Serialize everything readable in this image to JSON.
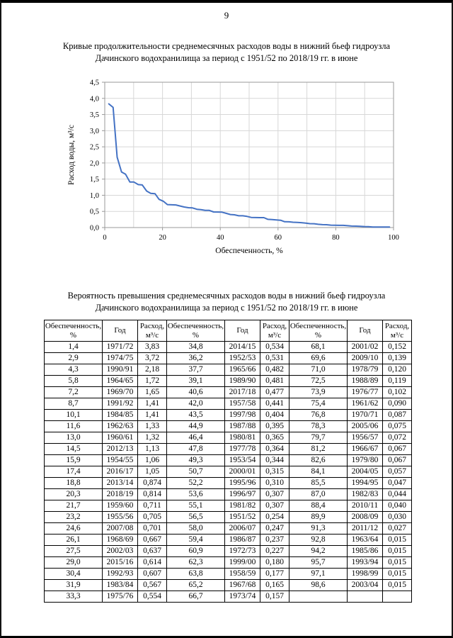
{
  "page_number": "9",
  "chart_section": {
    "title_line1": "Кривые продолжительности среднемесячных расходов воды в нижний бьеф гидроузла",
    "title_line2": "Дачинского водохранилища за период с 1951/52 по 2018/19 гг. в июне"
  },
  "table_section": {
    "title_line1": "Вероятность превышения среднемесячных расходов воды в нижний бьеф гидроузла",
    "title_line2": "Дачинского водохранилища за период с 1951/52 по 2018/19 гг. в июне",
    "headers": [
      "Обеспеченность,\n%",
      "Год",
      "Расход,\nм³/с"
    ],
    "column_groups": [
      {
        "rows": [
          [
            "1,4",
            "1971/72",
            "3,83"
          ],
          [
            "2,9",
            "1974/75",
            "3,72"
          ],
          [
            "4,3",
            "1990/91",
            "2,18"
          ],
          [
            "5,8",
            "1964/65",
            "1,72"
          ],
          [
            "7,2",
            "1969/70",
            "1,65"
          ],
          [
            "8,7",
            "1991/92",
            "1,41"
          ],
          [
            "10,1",
            "1984/85",
            "1,41"
          ],
          [
            "11,6",
            "1962/63",
            "1,33"
          ],
          [
            "13,0",
            "1960/61",
            "1,32"
          ],
          [
            "14,5",
            "2012/13",
            "1,13"
          ],
          [
            "15,9",
            "1954/55",
            "1,06"
          ],
          [
            "17,4",
            "2016/17",
            "1,05"
          ],
          [
            "18,8",
            "2013/14",
            "0,874"
          ],
          [
            "20,3",
            "2018/19",
            "0,814"
          ],
          [
            "21,7",
            "1959/60",
            "0,711"
          ],
          [
            "23,2",
            "1955/56",
            "0,705"
          ],
          [
            "24,6",
            "2007/08",
            "0,701"
          ],
          [
            "26,1",
            "1968/69",
            "0,667"
          ],
          [
            "27,5",
            "2002/03",
            "0,637"
          ],
          [
            "29,0",
            "2015/16",
            "0,614"
          ],
          [
            "30,4",
            "1992/93",
            "0,607"
          ],
          [
            "31,9",
            "1983/84",
            "0,567"
          ],
          [
            "33,3",
            "1975/76",
            "0,554"
          ]
        ]
      },
      {
        "rows": [
          [
            "34,8",
            "2014/15",
            "0,534"
          ],
          [
            "36,2",
            "1952/53",
            "0,531"
          ],
          [
            "37,7",
            "1965/66",
            "0,482"
          ],
          [
            "39,1",
            "1989/90",
            "0,481"
          ],
          [
            "40,6",
            "2017/18",
            "0,477"
          ],
          [
            "42,0",
            "1957/58",
            "0,441"
          ],
          [
            "43,5",
            "1997/98",
            "0,404"
          ],
          [
            "44,9",
            "1987/88",
            "0,395"
          ],
          [
            "46,4",
            "1980/81",
            "0,365"
          ],
          [
            "47,8",
            "1977/78",
            "0,364"
          ],
          [
            "49,3",
            "1953/54",
            "0,344"
          ],
          [
            "50,7",
            "2000/01",
            "0,315"
          ],
          [
            "52,2",
            "1995/96",
            "0,310"
          ],
          [
            "53,6",
            "1996/97",
            "0,307"
          ],
          [
            "55,1",
            "1981/82",
            "0,307"
          ],
          [
            "56,5",
            "1951/52",
            "0,254"
          ],
          [
            "58,0",
            "2006/07",
            "0,247"
          ],
          [
            "59,4",
            "1986/87",
            "0,237"
          ],
          [
            "60,9",
            "1972/73",
            "0,227"
          ],
          [
            "62,3",
            "1999/00",
            "0,180"
          ],
          [
            "63,8",
            "1958/59",
            "0,177"
          ],
          [
            "65,2",
            "1967/68",
            "0,165"
          ],
          [
            "66,7",
            "1973/74",
            "0,157"
          ]
        ]
      },
      {
        "rows": [
          [
            "68,1",
            "2001/02",
            "0,152"
          ],
          [
            "69,6",
            "2009/10",
            "0,139"
          ],
          [
            "71,0",
            "1978/79",
            "0,120"
          ],
          [
            "72,5",
            "1988/89",
            "0,119"
          ],
          [
            "73,9",
            "1976/77",
            "0,102"
          ],
          [
            "75,4",
            "1961/62",
            "0,090"
          ],
          [
            "76,8",
            "1970/71",
            "0,087"
          ],
          [
            "78,3",
            "2005/06",
            "0,075"
          ],
          [
            "79,7",
            "1956/57",
            "0,072"
          ],
          [
            "81,2",
            "1966/67",
            "0,067"
          ],
          [
            "82,6",
            "1979/80",
            "0,067"
          ],
          [
            "84,1",
            "2004/05",
            "0,057"
          ],
          [
            "85,5",
            "1994/95",
            "0,047"
          ],
          [
            "87,0",
            "1982/83",
            "0,044"
          ],
          [
            "88,4",
            "2010/11",
            "0,040"
          ],
          [
            "89,9",
            "2008/09",
            "0,030"
          ],
          [
            "91,3",
            "2011/12",
            "0,027"
          ],
          [
            "92,8",
            "1963/64",
            "0,015"
          ],
          [
            "94,2",
            "1985/86",
            "0,015"
          ],
          [
            "95,7",
            "1993/94",
            "0,015"
          ],
          [
            "97,1",
            "1998/99",
            "0,015"
          ],
          [
            "98,6",
            "2003/04",
            "0,015"
          ]
        ]
      }
    ]
  },
  "chart_data": {
    "type": "line",
    "title": "",
    "xlabel": "Обеспеченность, %",
    "ylabel": "Расход воды, м³/с",
    "xlim": [
      0,
      100
    ],
    "ylim": [
      0,
      4.5
    ],
    "x_ticks": [
      0,
      20,
      40,
      60,
      80,
      100
    ],
    "y_ticks": [
      0,
      0.5,
      1,
      1.5,
      2,
      2.5,
      3,
      3.5,
      4,
      4.5
    ],
    "grid": true,
    "legend": false,
    "line_color": "#4472c4",
    "x": [
      1.4,
      2.9,
      4.3,
      5.8,
      7.2,
      8.7,
      10.1,
      11.6,
      13.0,
      14.5,
      15.9,
      17.4,
      18.8,
      20.3,
      21.7,
      23.2,
      24.6,
      26.1,
      27.5,
      29.0,
      30.4,
      31.9,
      33.3,
      34.8,
      36.2,
      37.7,
      39.1,
      40.6,
      42.0,
      43.5,
      44.9,
      46.4,
      47.8,
      49.3,
      50.7,
      52.2,
      53.6,
      55.1,
      56.5,
      58.0,
      59.4,
      60.9,
      62.3,
      63.8,
      65.2,
      66.7,
      68.1,
      69.6,
      71.0,
      72.5,
      73.9,
      75.4,
      76.8,
      78.3,
      79.7,
      81.2,
      82.6,
      84.1,
      85.5,
      87.0,
      88.4,
      89.9,
      91.3,
      92.8,
      94.2,
      95.7,
      97.1,
      98.6
    ],
    "y": [
      3.83,
      3.72,
      2.18,
      1.72,
      1.65,
      1.41,
      1.41,
      1.33,
      1.32,
      1.13,
      1.06,
      1.05,
      0.874,
      0.814,
      0.711,
      0.705,
      0.701,
      0.667,
      0.637,
      0.614,
      0.607,
      0.567,
      0.554,
      0.534,
      0.531,
      0.482,
      0.481,
      0.477,
      0.441,
      0.404,
      0.395,
      0.365,
      0.364,
      0.344,
      0.315,
      0.31,
      0.307,
      0.307,
      0.254,
      0.247,
      0.237,
      0.227,
      0.18,
      0.177,
      0.165,
      0.157,
      0.152,
      0.139,
      0.12,
      0.119,
      0.102,
      0.09,
      0.087,
      0.075,
      0.072,
      0.067,
      0.067,
      0.057,
      0.047,
      0.044,
      0.04,
      0.03,
      0.027,
      0.015,
      0.015,
      0.015,
      0.015,
      0.015
    ]
  }
}
